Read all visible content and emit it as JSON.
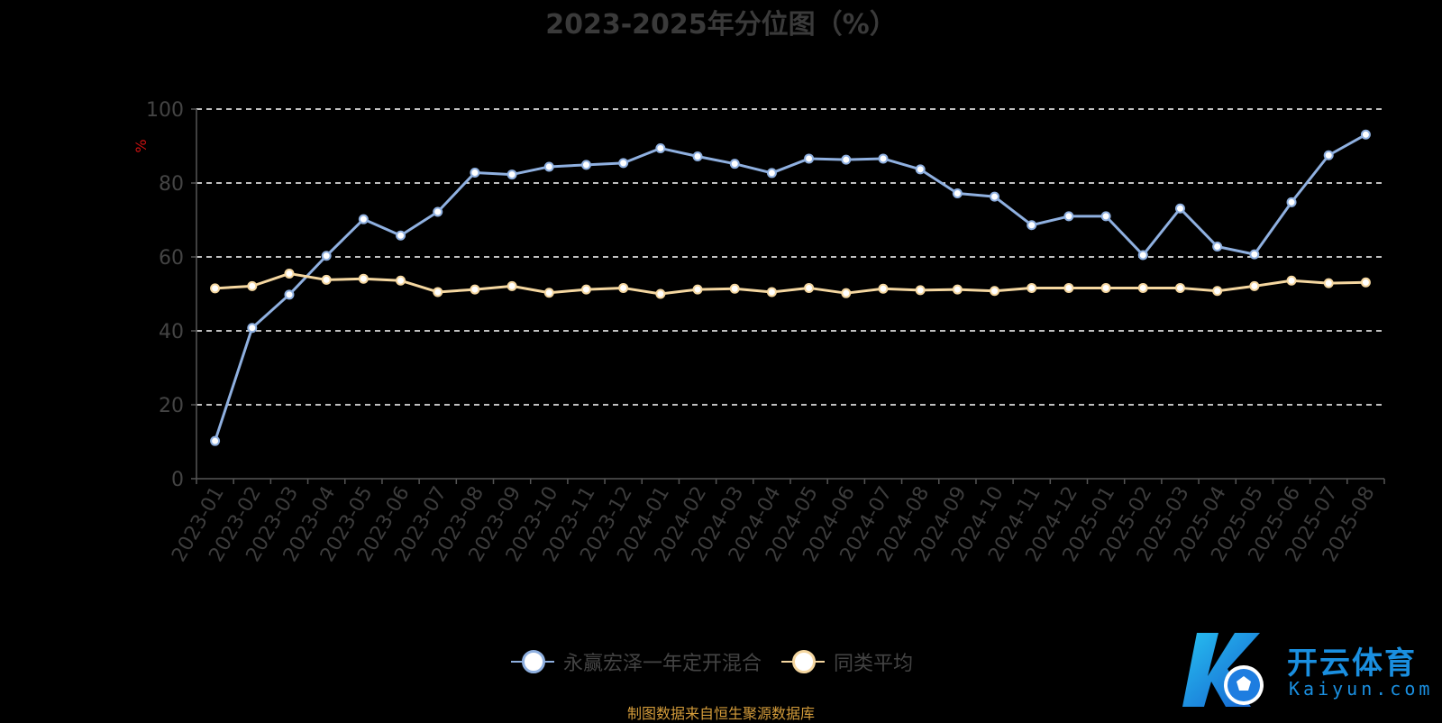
{
  "chart_data": {
    "type": "line",
    "title": "2023-2025年分位图（%）",
    "ylabel": "%",
    "xlabel": "",
    "ylim": [
      0,
      100
    ],
    "yticks": [
      0,
      20,
      40,
      60,
      80,
      100
    ],
    "grid": true,
    "legend_position": "bottom-center",
    "categories": [
      "2023-01",
      "2023-02",
      "2023-03",
      "2023-04",
      "2023-05",
      "2023-06",
      "2023-07",
      "2023-08",
      "2023-09",
      "2023-10",
      "2023-11",
      "2023-12",
      "2024-01",
      "2024-02",
      "2024-03",
      "2024-04",
      "2024-05",
      "2024-06",
      "2024-07",
      "2024-08",
      "2024-09",
      "2024-10",
      "2024-11",
      "2024-12",
      "2025-01",
      "2025-02",
      "2025-03",
      "2025-04",
      "2025-05",
      "2025-06",
      "2025-07",
      "2025-08"
    ],
    "series": [
      {
        "name": "永赢宏泽一年定开混合",
        "color": "#8fb0e0",
        "values": [
          10.2,
          40.8,
          49.8,
          60.3,
          70.2,
          65.8,
          72.2,
          82.8,
          82.3,
          84.4,
          84.9,
          85.4,
          89.4,
          87.2,
          85.2,
          82.7,
          86.6,
          86.3,
          86.6,
          83.7,
          77.2,
          76.3,
          68.6,
          71.0,
          71.0,
          60.5,
          73.1,
          62.8,
          60.7,
          74.8,
          87.5,
          93.1
        ]
      },
      {
        "name": "同类平均",
        "color": "#f5d7a0",
        "values": [
          51.5,
          52.1,
          55.5,
          53.8,
          54.1,
          53.6,
          50.5,
          51.2,
          52.1,
          50.3,
          51.2,
          51.6,
          50.0,
          51.2,
          51.4,
          50.5,
          51.6,
          50.2,
          51.4,
          51.0,
          51.2,
          50.8,
          51.6,
          51.6,
          51.6,
          51.6,
          51.6,
          50.8,
          52.1,
          53.6,
          52.9,
          53.1
        ]
      }
    ]
  },
  "source_note": "制图数据来自恒生聚源数据库",
  "logo": {
    "name": "开云体育",
    "sub": "Kaiyun.com"
  }
}
